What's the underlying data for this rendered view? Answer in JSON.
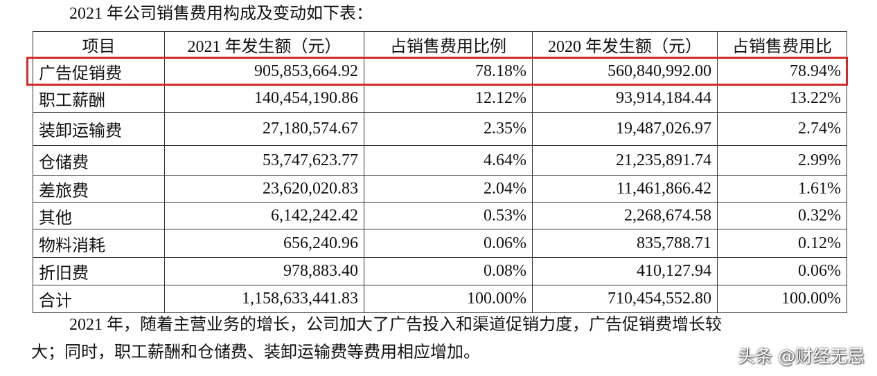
{
  "intro": "2021 年公司销售费用构成及变动如下表：",
  "table": {
    "header": [
      "项目",
      "2021 年发生额（元）",
      "占销售费用比例",
      "2020 年发生额（元）",
      "占销售费用比"
    ],
    "rows": [
      [
        "广告促销费",
        "905,853,664.92",
        "78.18%",
        "560,840,992.00",
        "78.94%"
      ],
      [
        "职工薪酬",
        "140,454,190.86",
        "12.12%",
        "93,914,184.44",
        "13.22%"
      ],
      [
        "装卸运输费",
        "27,180,574.67",
        "2.35%",
        "19,487,026.97",
        "2.74%"
      ],
      [
        "仓储费",
        "53,747,623.77",
        "4.64%",
        "21,235,891.74",
        "2.99%"
      ],
      [
        "差旅费",
        "23,620,020.83",
        "2.04%",
        "11,461,866.42",
        "1.61%"
      ],
      [
        "其他",
        "6,142,242.42",
        "0.53%",
        "2,268,674.58",
        "0.32%"
      ],
      [
        "物料消耗",
        "656,240.96",
        "0.06%",
        "835,788.71",
        "0.12%"
      ],
      [
        "折旧费",
        "978,883.40",
        "0.08%",
        "410,127.94",
        "0.06%"
      ],
      [
        "合计",
        "1,158,633,441.83",
        "100.00%",
        "710,454,552.80",
        "100.00%"
      ]
    ]
  },
  "paragraph": {
    "lines": [
      "2021 年，随着主营业务的增长，公司加大了广告投入和渠道促销力度，广告促销费增长较",
      "大；同时，职工薪酬和仓储费、装卸运输费等费用相应增加。"
    ]
  },
  "watermark": "头条 @财经无忌"
}
